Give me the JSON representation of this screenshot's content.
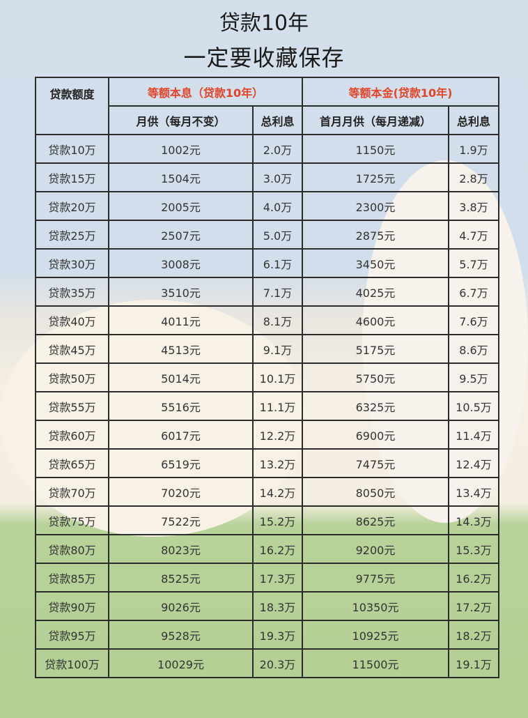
{
  "title_line1": "贷款10年",
  "title_line2": "一定要收藏保存",
  "table": {
    "header_amount": "贷款额度",
    "group_equal_installment": "等额本息（贷款10年）",
    "group_equal_principal": "等额本金(贷款10年)",
    "col_monthly_fixed": "月供（每月不变）",
    "col_total_interest_1": "总利息",
    "col_first_month": "首月月供（每月递减）",
    "col_total_interest_2": "总利息",
    "accent_color": "#e0452a",
    "rows": [
      [
        "贷款10万",
        "1002元",
        "2.0万",
        "1150元",
        "1.9万"
      ],
      [
        "贷款15万",
        "1504元",
        "3.0万",
        "1725元",
        "2.8万"
      ],
      [
        "贷款20万",
        "2005元",
        "4.0万",
        "2300元",
        "3.8万"
      ],
      [
        "贷款25万",
        "2507元",
        "5.0万",
        "2875元",
        "4.7万"
      ],
      [
        "贷款30万",
        "3008元",
        "6.1万",
        "3450元",
        "5.7万"
      ],
      [
        "贷款35万",
        "3510元",
        "7.1万",
        "4025元",
        "6.7万"
      ],
      [
        "贷款40万",
        "4011元",
        "8.1万",
        "4600元",
        "7.6万"
      ],
      [
        "贷款45万",
        "4513元",
        "9.1万",
        "5175元",
        "8.6万"
      ],
      [
        "贷款50万",
        "5014元",
        "10.1万",
        "5750元",
        "9.5万"
      ],
      [
        "贷款55万",
        "5516元",
        "11.1万",
        "6325元",
        "10.5万"
      ],
      [
        "贷款60万",
        "6017元",
        "12.2万",
        "6900元",
        "11.4万"
      ],
      [
        "贷款65万",
        "6519元",
        "13.2万",
        "7475元",
        "12.4万"
      ],
      [
        "贷款70万",
        "7020元",
        "14.2万",
        "8050元",
        "13.4万"
      ],
      [
        "贷款75万",
        "7522元",
        "15.2万",
        "8625元",
        "14.3万"
      ],
      [
        "贷款80万",
        "8023元",
        "16.2万",
        "9200元",
        "15.3万"
      ],
      [
        "贷款85万",
        "8525元",
        "17.3万",
        "9775元",
        "16.2万"
      ],
      [
        "贷款90万",
        "9026元",
        "18.3万",
        "10350元",
        "17.2万"
      ],
      [
        "贷款95万",
        "9528元",
        "19.3万",
        "10925元",
        "18.2万"
      ],
      [
        "贷款100万",
        "10029元",
        "20.3万",
        "11500元",
        "19.1万"
      ]
    ]
  }
}
